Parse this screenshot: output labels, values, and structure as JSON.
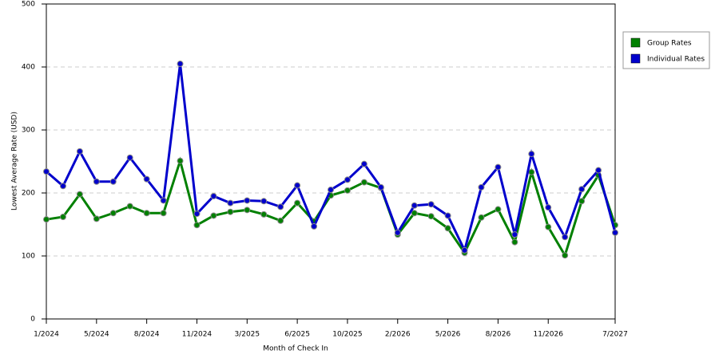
{
  "chart_data": {
    "type": "line",
    "x_label": "Month of Check In",
    "y_label": "Lowest Average Rate (USD)",
    "categories": [
      "1/2024",
      null,
      null,
      "5/2024",
      null,
      null,
      "8/2024",
      null,
      null,
      "11/2024",
      null,
      null,
      "3/2025",
      null,
      null,
      "6/2025",
      null,
      null,
      "10/2025",
      null,
      null,
      "2/2026",
      null,
      null,
      "5/2026",
      null,
      null,
      "8/2026",
      null,
      null,
      "11/2026",
      null,
      null,
      null,
      "7/2027"
    ],
    "series": [
      {
        "name": "Group Rates",
        "color": "#008000",
        "values": [
          158,
          162,
          198,
          159,
          168,
          179,
          168,
          168,
          251,
          149,
          164,
          170,
          173,
          166,
          156,
          184,
          155,
          196,
          204,
          217,
          208,
          134,
          168,
          163,
          144,
          105,
          161,
          174,
          122,
          233,
          146,
          101,
          187,
          228,
          149
        ]
      },
      {
        "name": "Individual Rates",
        "color": "#0000cc",
        "values": [
          234,
          211,
          266,
          218,
          218,
          256,
          222,
          188,
          405,
          167,
          195,
          184,
          188,
          187,
          178,
          212,
          147,
          205,
          221,
          246,
          209,
          137,
          180,
          182,
          164,
          109,
          209,
          241,
          134,
          262,
          177,
          130,
          206,
          236,
          137
        ]
      }
    ],
    "ylim": [
      0,
      500
    ],
    "yticks": [
      0,
      100,
      200,
      300,
      400,
      500
    ],
    "grid": true,
    "legend": "right"
  }
}
